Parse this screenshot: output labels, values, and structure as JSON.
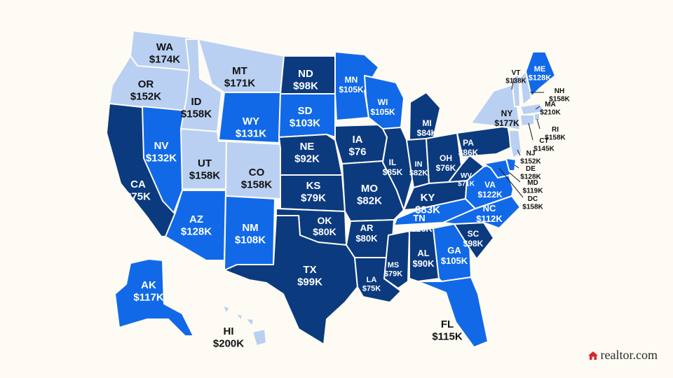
{
  "colors": {
    "dark": "#0b3a7e",
    "medium": "#1169e8",
    "light": "#b9d0f2",
    "outside_text": "#111111",
    "on_light_text": "#111111",
    "on_color_text": "#ffffff",
    "logo_house": "#d7262c"
  },
  "states": [
    {
      "code": "WA",
      "value": "$174K",
      "tier": "light"
    },
    {
      "code": "OR",
      "value": "$152K",
      "tier": "light"
    },
    {
      "code": "CA",
      "value": "$75K",
      "tier": "dark"
    },
    {
      "code": "NV",
      "value": "$132K",
      "tier": "medium"
    },
    {
      "code": "ID",
      "value": "$158K",
      "tier": "light"
    },
    {
      "code": "MT",
      "value": "$171K",
      "tier": "light"
    },
    {
      "code": "WY",
      "value": "$131K",
      "tier": "medium"
    },
    {
      "code": "UT",
      "value": "$158K",
      "tier": "light"
    },
    {
      "code": "CO",
      "value": "$158K",
      "tier": "light"
    },
    {
      "code": "AZ",
      "value": "$128K",
      "tier": "medium"
    },
    {
      "code": "NM",
      "value": "$108K",
      "tier": "medium"
    },
    {
      "code": "ND",
      "value": "$98K",
      "tier": "dark"
    },
    {
      "code": "SD",
      "value": "$103K",
      "tier": "medium"
    },
    {
      "code": "NE",
      "value": "$92K",
      "tier": "dark"
    },
    {
      "code": "KS",
      "value": "$79K",
      "tier": "dark"
    },
    {
      "code": "OK",
      "value": "$80K",
      "tier": "dark"
    },
    {
      "code": "TX",
      "value": "$99K",
      "tier": "dark"
    },
    {
      "code": "MN",
      "value": "$105K",
      "tier": "medium"
    },
    {
      "code": "IA",
      "value": "$76",
      "tier": "dark"
    },
    {
      "code": "MO",
      "value": "$82K",
      "tier": "dark"
    },
    {
      "code": "AR",
      "value": "$80K",
      "tier": "dark"
    },
    {
      "code": "LA",
      "value": "$75K",
      "tier": "dark"
    },
    {
      "code": "WI",
      "value": "$105K",
      "tier": "medium"
    },
    {
      "code": "IL",
      "value": "$85K",
      "tier": "dark"
    },
    {
      "code": "MI",
      "value": "$84K",
      "tier": "dark"
    },
    {
      "code": "IN",
      "value": "$82K",
      "tier": "dark"
    },
    {
      "code": "OH",
      "value": "$76K",
      "tier": "dark"
    },
    {
      "code": "KY",
      "value": "$83K",
      "tier": "dark"
    },
    {
      "code": "TN",
      "value": "$116K",
      "tier": "medium"
    },
    {
      "code": "MS",
      "value": "$79K",
      "tier": "dark"
    },
    {
      "code": "AL",
      "value": "$90K",
      "tier": "dark"
    },
    {
      "code": "GA",
      "value": "$105K",
      "tier": "medium"
    },
    {
      "code": "FL",
      "value": "$115K",
      "tier": "medium"
    },
    {
      "code": "SC",
      "value": "$98K",
      "tier": "dark"
    },
    {
      "code": "NC",
      "value": "$112K",
      "tier": "medium"
    },
    {
      "code": "VA",
      "value": "$122K",
      "tier": "medium"
    },
    {
      "code": "WV",
      "value": "$71K",
      "tier": "dark"
    },
    {
      "code": "PA",
      "value": "$86K",
      "tier": "dark"
    },
    {
      "code": "NY",
      "value": "$177K",
      "tier": "light"
    },
    {
      "code": "VT",
      "value": "$138K",
      "tier": "light"
    },
    {
      "code": "NH",
      "value": "$158K",
      "tier": "light"
    },
    {
      "code": "ME",
      "value": "$128K",
      "tier": "medium"
    },
    {
      "code": "MA",
      "value": "$210K",
      "tier": "light"
    },
    {
      "code": "RI",
      "value": "$158K",
      "tier": "light"
    },
    {
      "code": "CT",
      "value": "$145K",
      "tier": "light"
    },
    {
      "code": "NJ",
      "value": "$152K",
      "tier": "light"
    },
    {
      "code": "DE",
      "value": "$128K",
      "tier": "medium"
    },
    {
      "code": "MD",
      "value": "$119K",
      "tier": "medium"
    },
    {
      "code": "DC",
      "value": "$158K",
      "tier": "light"
    },
    {
      "code": "AK",
      "value": "$117K",
      "tier": "medium"
    },
    {
      "code": "HI",
      "value": "$200K",
      "tier": "light"
    }
  ],
  "logo": {
    "text": "realtor.com",
    "icon": "house-icon"
  }
}
